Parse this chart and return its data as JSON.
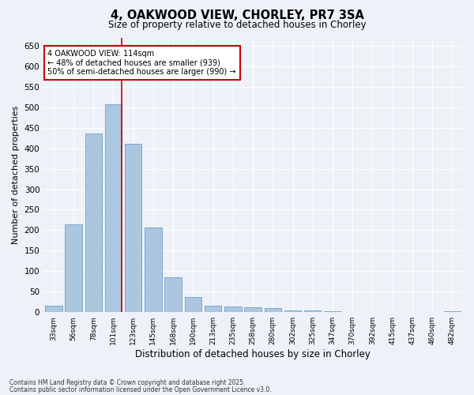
{
  "title1": "4, OAKWOOD VIEW, CHORLEY, PR7 3SA",
  "title2": "Size of property relative to detached houses in Chorley",
  "xlabel": "Distribution of detached houses by size in Chorley",
  "ylabel": "Number of detached properties",
  "categories": [
    "33sqm",
    "56sqm",
    "78sqm",
    "101sqm",
    "123sqm",
    "145sqm",
    "168sqm",
    "190sqm",
    "213sqm",
    "235sqm",
    "258sqm",
    "280sqm",
    "302sqm",
    "325sqm",
    "347sqm",
    "370sqm",
    "392sqm",
    "415sqm",
    "437sqm",
    "460sqm",
    "482sqm"
  ],
  "values": [
    15,
    215,
    435,
    508,
    410,
    207,
    85,
    37,
    15,
    14,
    12,
    10,
    5,
    4,
    2,
    1,
    1,
    0,
    0,
    0,
    3
  ],
  "bar_color": "#adc6e0",
  "bar_edge_color": "#6b9ec8",
  "vline_color": "#cc0000",
  "annotation_text": "4 OAKWOOD VIEW: 114sqm\n← 48% of detached houses are smaller (939)\n50% of semi-detached houses are larger (990) →",
  "annotation_box_color": "#ffffff",
  "annotation_box_edge_color": "#cc0000",
  "ylim": [
    0,
    670
  ],
  "yticks": [
    0,
    50,
    100,
    150,
    200,
    250,
    300,
    350,
    400,
    450,
    500,
    550,
    600,
    650
  ],
  "background_color": "#eef2f8",
  "grid_color": "#ffffff",
  "footer1": "Contains HM Land Registry data © Crown copyright and database right 2025.",
  "footer2": "Contains public sector information licensed under the Open Government Licence v3.0."
}
